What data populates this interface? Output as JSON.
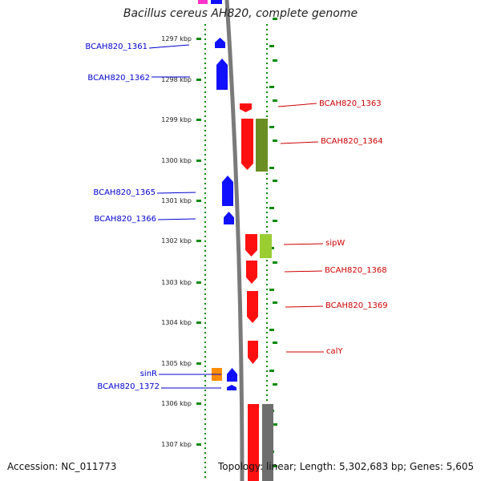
{
  "title": "Bacillus cereus AH820, complete genome",
  "footer": {
    "accession": "Accession: NC_011773",
    "summary": "Topology: linear; Length: 5,302,683 bp; Genes: 5,605"
  },
  "colors": {
    "minus_strand": "#1010ff",
    "plus_strand": "#ff1010",
    "olive": "#6b8e23",
    "lime": "#9acd32",
    "orange": "#ff8c00",
    "gray": "#6e6e6e",
    "tick": "#0a8a0a",
    "pink": "#ff33cc"
  },
  "scale": {
    "unit": "kbp",
    "ticks": [
      "1297 kbp",
      "1298 kbp",
      "1299 kbp",
      "1300 kbp",
      "1301 kbp",
      "1302 kbp",
      "1303 kbp",
      "1304 kbp",
      "1305 kbp",
      "1306 kbp",
      "1307 kbp"
    ]
  },
  "genes_left": [
    {
      "label": "BCAH820_1361",
      "color": "#1010ff"
    },
    {
      "label": "BCAH820_1362",
      "color": "#1010ff"
    },
    {
      "label": "BCAH820_1365",
      "color": "#1010ff"
    },
    {
      "label": "BCAH820_1366",
      "color": "#1010ff"
    },
    {
      "label": "sinR",
      "color": "#1010ff"
    },
    {
      "label": "BCAH820_1372",
      "color": "#1010ff"
    }
  ],
  "genes_right": [
    {
      "label": "BCAH820_1363",
      "color": "#ff1010"
    },
    {
      "label": "BCAH820_1364",
      "color": "#ff1010"
    },
    {
      "label": "sipW",
      "color": "#ff1010"
    },
    {
      "label": "BCAH820_1368",
      "color": "#ff1010"
    },
    {
      "label": "BCAH820_1369",
      "color": "#ff1010"
    },
    {
      "label": "calY",
      "color": "#ff1010"
    }
  ]
}
